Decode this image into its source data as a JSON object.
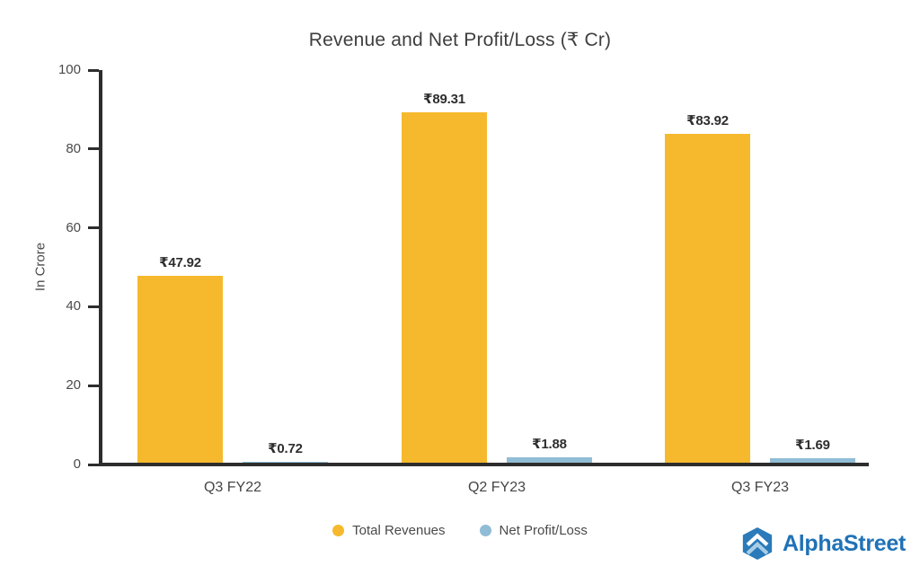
{
  "chart_data": {
    "type": "bar",
    "title": "Revenue and Net Profit/Loss (₹ Cr)",
    "ylabel": "In Crore",
    "xlabel": "",
    "ylim": [
      0,
      100
    ],
    "yticks": [
      0,
      20,
      40,
      60,
      80,
      100
    ],
    "categories": [
      "Q3 FY22",
      "Q2 FY23",
      "Q3 FY23"
    ],
    "series": [
      {
        "name": "Total Revenues",
        "color": "#F6B92D",
        "values": [
          47.92,
          89.31,
          83.92
        ]
      },
      {
        "name": "Net Profit/Loss",
        "color": "#90BDD5",
        "values": [
          0.72,
          1.88,
          1.69
        ]
      }
    ],
    "value_prefix": "₹",
    "data_labels": [
      "₹47.92",
      "₹0.72",
      "₹89.31",
      "₹1.88",
      "₹83.92",
      "₹1.69"
    ],
    "grid": false,
    "legend_position": "bottom",
    "axis_color": "#2D2D2D"
  },
  "branding": {
    "logo_text": "AlphaStreet",
    "logo_color": "#1F72B7"
  }
}
